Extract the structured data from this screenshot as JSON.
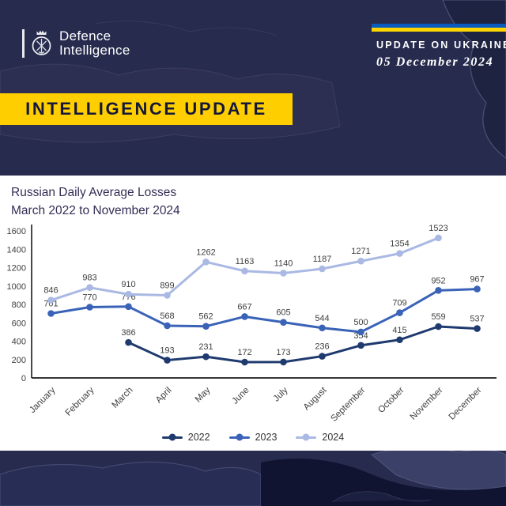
{
  "header": {
    "logo_line1": "Defence",
    "logo_line2": "Intelligence",
    "update_label": "UPDATE ON UKRAINE",
    "date": "05 December 2024",
    "flag_blue": "#0a5bbf",
    "flag_yellow": "#ffd500"
  },
  "banner": {
    "label": "INTELLIGENCE UPDATE",
    "bg_color": "#ffce00",
    "text_color": "#13173a"
  },
  "chart_data": {
    "type": "line",
    "title": "Russian Daily Average Losses",
    "subtitle": "March 2022 to November 2024",
    "categories": [
      "January",
      "February",
      "March",
      "April",
      "May",
      "June",
      "July",
      "August",
      "September",
      "October",
      "November",
      "December"
    ],
    "series": [
      {
        "name": "2022",
        "color": "#1f3a6e",
        "values": [
          null,
          null,
          386,
          193,
          231,
          172,
          173,
          236,
          354,
          415,
          559,
          537
        ]
      },
      {
        "name": "2023",
        "color": "#3a63b8",
        "values": [
          701,
          770,
          776,
          568,
          562,
          667,
          605,
          544,
          500,
          709,
          952,
          967
        ]
      },
      {
        "name": "2024",
        "color": "#aab9e3",
        "values": [
          846,
          983,
          910,
          899,
          1262,
          1163,
          1140,
          1187,
          1271,
          1354,
          1523,
          null
        ]
      }
    ],
    "ylim": [
      0,
      1600
    ],
    "ytick_step": 200,
    "grid": false,
    "legend_position": "bottom",
    "axis_color": "#1a1a1a",
    "label_color": "#404040"
  }
}
